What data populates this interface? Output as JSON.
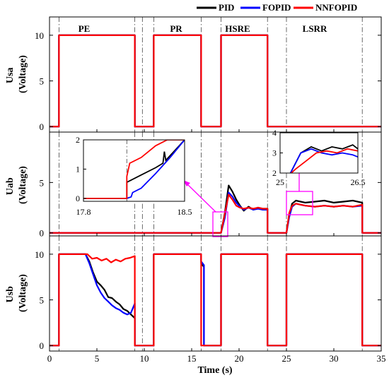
{
  "figure": {
    "legend": {
      "position": "top-right",
      "entries": [
        {
          "name": "PID",
          "color": "#000000"
        },
        {
          "name": "FOPID",
          "color": "#0000ff"
        },
        {
          "name": "NNFOPID",
          "color": "#ff0000"
        }
      ]
    },
    "xlabel": "Time (s)",
    "x_ticks": [
      "0",
      "5",
      "10",
      "15",
      "20",
      "25",
      "30",
      "35"
    ],
    "xlim": [
      0,
      35
    ],
    "phase_lines": [
      1.0,
      9.0,
      9.8,
      11.0,
      16.0,
      18.1,
      23.0,
      25.0,
      33.0
    ],
    "regions": [
      {
        "label": "PE",
        "x": 3.75
      },
      {
        "label": "PR",
        "x": 13.3
      },
      {
        "label": "HSRE",
        "x": 19.85
      },
      {
        "label": "LSRR",
        "x": 28.0
      }
    ]
  },
  "chart_data": [
    {
      "type": "line",
      "title": "",
      "ylabel": "Usa\n(Voltage)",
      "ylabel_lines": [
        "Usa",
        "(Voltage)"
      ],
      "ylim": [
        -0.6,
        12
      ],
      "y_ticks": [
        "0",
        "5",
        "10"
      ],
      "series": [
        {
          "name": "PID",
          "x": [
            0,
            1,
            1,
            9,
            9,
            11,
            11,
            16,
            16,
            18.1,
            18.1,
            23,
            23,
            35
          ],
          "y": [
            0,
            0,
            10,
            10,
            0,
            0,
            10,
            10,
            0,
            0,
            10,
            10,
            0,
            0
          ]
        },
        {
          "name": "FOPID",
          "x": [
            0,
            1,
            1,
            9,
            9,
            11,
            11,
            16,
            16,
            18.1,
            18.1,
            23,
            23,
            35
          ],
          "y": [
            0,
            0,
            10,
            10,
            0,
            0,
            10,
            10,
            0,
            0,
            10,
            10,
            0,
            0
          ]
        },
        {
          "name": "NNFOPID",
          "x": [
            0,
            1,
            1,
            9,
            9,
            11,
            11,
            16,
            16,
            18.1,
            18.1,
            23,
            23,
            35
          ],
          "y": [
            0,
            0,
            10,
            10,
            0,
            0,
            10,
            10,
            0,
            0,
            10,
            10,
            0,
            0
          ]
        }
      ]
    },
    {
      "type": "line",
      "title": "",
      "ylabel": "Uab\n(Voltage)",
      "ylabel_lines": [
        "Uab",
        "(Voltage)"
      ],
      "ylim": [
        -0.3,
        10
      ],
      "y_ticks": [
        "0",
        "5"
      ],
      "series": [
        {
          "name": "PID",
          "x": [
            0,
            18.1,
            18.5,
            18.9,
            19.3,
            19.7,
            20.1,
            20.5,
            21.0,
            21.5,
            22.0,
            22.5,
            23.0,
            23.01,
            25.0,
            25.3,
            25.6,
            26.0,
            26.5,
            27.0,
            28.0,
            29.0,
            30.0,
            31.0,
            32.0,
            33.0,
            33.01,
            35
          ],
          "y": [
            0,
            0,
            2.0,
            4.7,
            4.1,
            3.3,
            2.7,
            2.2,
            2.6,
            2.3,
            2.5,
            2.4,
            2.4,
            0,
            0,
            1.8,
            2.9,
            3.2,
            3.1,
            3.0,
            3.1,
            3.2,
            3.0,
            3.1,
            3.2,
            3.0,
            0,
            0
          ]
        },
        {
          "name": "FOPID",
          "x": [
            0,
            18.1,
            18.5,
            18.9,
            19.3,
            19.7,
            20.1,
            20.5,
            21.0,
            21.5,
            22.0,
            22.5,
            23.0,
            23.01,
            25.0,
            25.3,
            25.6,
            26.0,
            26.5,
            27.0,
            28.0,
            29.0,
            30.0,
            31.0,
            32.0,
            33.0,
            33.01,
            35
          ],
          "y": [
            0,
            0,
            1.5,
            4.0,
            3.6,
            3.0,
            2.6,
            2.3,
            2.5,
            2.3,
            2.4,
            2.3,
            2.3,
            0,
            0,
            1.6,
            2.6,
            2.9,
            2.8,
            2.7,
            2.6,
            2.7,
            2.6,
            2.7,
            2.6,
            2.7,
            0,
            0
          ]
        },
        {
          "name": "NNFOPID",
          "x": [
            0,
            18.1,
            18.5,
            18.9,
            19.3,
            19.7,
            20.1,
            20.5,
            21.0,
            21.5,
            22.0,
            22.5,
            23.0,
            23.01,
            25.0,
            25.3,
            25.6,
            26.0,
            26.5,
            27.0,
            28.0,
            29.0,
            30.0,
            31.0,
            32.0,
            33.0,
            33.01,
            35
          ],
          "y": [
            0,
            0,
            1.9,
            3.8,
            3.3,
            2.7,
            2.5,
            2.4,
            2.5,
            2.4,
            2.5,
            2.4,
            2.4,
            0,
            0,
            2.0,
            2.7,
            2.9,
            2.8,
            2.7,
            2.6,
            2.7,
            2.6,
            2.7,
            2.6,
            2.8,
            0,
            0
          ]
        }
      ]
    },
    {
      "type": "line",
      "title": "",
      "ylabel": "Usb\n(Voltage)",
      "ylabel_lines": [
        "Usb",
        "(Voltage)"
      ],
      "ylim": [
        -0.6,
        12
      ],
      "y_ticks": [
        "0",
        "5",
        "10"
      ],
      "series": [
        {
          "name": "PID",
          "x": [
            0,
            1,
            1,
            3.8,
            4.2,
            4.6,
            5.0,
            5.4,
            5.8,
            6.2,
            6.6,
            7.0,
            7.4,
            7.8,
            8.2,
            8.6,
            9.0,
            9.0,
            11,
            11,
            16,
            16,
            16.3,
            16.3,
            18.1,
            18.1,
            23,
            23,
            25,
            25,
            33,
            33,
            35
          ],
          "y": [
            0,
            0,
            10,
            10,
            9.2,
            8.0,
            7.0,
            6.6,
            6.1,
            5.3,
            5.2,
            4.8,
            4.5,
            4.0,
            3.8,
            3.4,
            3.0,
            0,
            0,
            10,
            10,
            9.0,
            8.6,
            0,
            0,
            10,
            10,
            0,
            0,
            10,
            10,
            0,
            0
          ]
        },
        {
          "name": "FOPID",
          "x": [
            0,
            1,
            1,
            3.8,
            4.2,
            4.6,
            5.0,
            5.4,
            5.8,
            6.2,
            6.6,
            7.0,
            7.4,
            7.8,
            8.2,
            8.6,
            9.0,
            9.0,
            11,
            11,
            16,
            16,
            16.3,
            16.3,
            18.1,
            18.1,
            23,
            23,
            25,
            25,
            33,
            33,
            35
          ],
          "y": [
            0,
            0,
            10,
            10,
            9.0,
            7.8,
            6.6,
            5.8,
            5.2,
            4.8,
            4.4,
            4.1,
            3.9,
            3.6,
            3.4,
            3.6,
            4.6,
            0,
            0,
            10,
            10,
            9.2,
            8.8,
            0,
            0,
            10,
            10,
            0,
            0,
            10,
            10,
            0,
            0
          ]
        },
        {
          "name": "NNFOPID",
          "x": [
            0,
            1,
            1,
            4.0,
            4.5,
            5.0,
            5.5,
            6.0,
            6.5,
            7.0,
            7.5,
            8.0,
            8.5,
            9.0,
            9.0,
            11,
            11,
            16,
            16,
            18.1,
            18.1,
            23,
            23,
            25,
            25,
            33,
            33,
            35
          ],
          "y": [
            0,
            0,
            10,
            10,
            9.5,
            9.6,
            9.3,
            9.5,
            9.1,
            9.4,
            9.2,
            9.5,
            9.6,
            9.8,
            0,
            0,
            10,
            10,
            0,
            0,
            10,
            10,
            0,
            0,
            10,
            10,
            0,
            0
          ]
        }
      ]
    },
    {
      "type": "line",
      "title": "",
      "inset_of": "Uab",
      "xlim": [
        17.8,
        18.5
      ],
      "ylim": [
        -0.1,
        2
      ],
      "x_ticks": [
        "17.8",
        "18.5"
      ],
      "y_ticks": [
        "0",
        "1",
        "2"
      ],
      "series": [
        {
          "name": "PID",
          "x": [
            17.8,
            18.1,
            18.1,
            18.2,
            18.3,
            18.35,
            18.36,
            18.37,
            18.5
          ],
          "y": [
            0,
            0,
            0.55,
            0.8,
            1.05,
            1.2,
            1.6,
            1.3,
            2.0
          ]
        },
        {
          "name": "FOPID",
          "x": [
            17.8,
            18.1,
            18.13,
            18.14,
            18.2,
            18.3,
            18.4,
            18.5
          ],
          "y": [
            0,
            0,
            0.05,
            0.2,
            0.35,
            0.85,
            1.4,
            2.0
          ]
        },
        {
          "name": "NNFOPID",
          "x": [
            17.8,
            18.1,
            18.1,
            18.12,
            18.2,
            18.3,
            18.38,
            18.5
          ],
          "y": [
            0,
            0,
            0.75,
            1.2,
            1.4,
            1.8,
            2.0,
            2.0
          ]
        }
      ]
    },
    {
      "type": "line",
      "title": "",
      "inset_of": "Uab",
      "xlim": [
        25,
        26.5
      ],
      "ylim": [
        2,
        4
      ],
      "x_ticks": [
        "25",
        "26.5"
      ],
      "y_ticks": [
        "2",
        "3",
        "4"
      ],
      "series": [
        {
          "name": "PID",
          "x": [
            25,
            25.2,
            25.4,
            25.6,
            25.8,
            26.0,
            26.2,
            26.4,
            26.5
          ],
          "y": [
            1.5,
            2.0,
            3.0,
            3.3,
            3.1,
            3.3,
            3.2,
            3.4,
            3.2
          ]
        },
        {
          "name": "FOPID",
          "x": [
            25,
            25.2,
            25.4,
            25.6,
            25.8,
            26.0,
            26.2,
            26.4,
            26.5
          ],
          "y": [
            1.5,
            2.0,
            3.0,
            3.2,
            3.0,
            2.9,
            3.0,
            2.9,
            2.8
          ]
        },
        {
          "name": "NNFOPID",
          "x": [
            25,
            25.3,
            25.5,
            25.7,
            25.9,
            26.1,
            26.3,
            26.5
          ],
          "y": [
            1.5,
            2.2,
            2.6,
            3.0,
            3.1,
            3.0,
            3.2,
            3.1
          ]
        }
      ]
    }
  ]
}
